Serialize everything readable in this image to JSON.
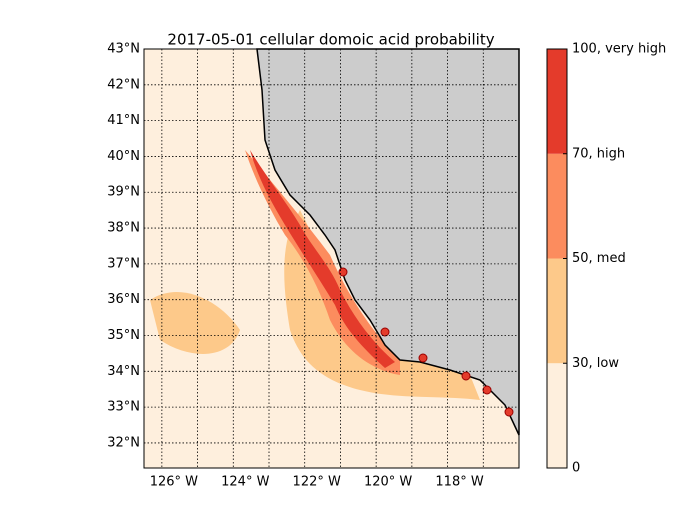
{
  "title": "2017-05-01 cellular domoic acid probability",
  "map": {
    "lat_range": [
      31.3,
      43
    ],
    "lon_range": [
      -126.5,
      -116
    ],
    "lat_ticks": [
      {
        "value": 32,
        "label": "32°N"
      },
      {
        "value": 33,
        "label": "33°N"
      },
      {
        "value": 34,
        "label": "34°N"
      },
      {
        "value": 35,
        "label": "35°N"
      },
      {
        "value": 36,
        "label": "36°N"
      },
      {
        "value": 37,
        "label": "37°N"
      },
      {
        "value": 38,
        "label": "38°N"
      },
      {
        "value": 39,
        "label": "39°N"
      },
      {
        "value": 40,
        "label": "40°N"
      },
      {
        "value": 41,
        "label": "41°N"
      },
      {
        "value": 42,
        "label": "42°N"
      },
      {
        "value": 43,
        "label": "43°N"
      }
    ],
    "lon_ticks": [
      {
        "value": -126,
        "label": "126° W"
      },
      {
        "value": -124,
        "label": "124° W"
      },
      {
        "value": -122,
        "label": "122° W"
      },
      {
        "value": -120,
        "label": "120° W"
      },
      {
        "value": -118,
        "label": "118° W"
      }
    ]
  },
  "colorbar": {
    "ticks": [
      {
        "value": 0,
        "label": "0"
      },
      {
        "value": 30,
        "label": "30, low"
      },
      {
        "value": 50,
        "label": "50, med"
      },
      {
        "value": 70,
        "label": "70, high"
      },
      {
        "value": 100,
        "label": "100, very high"
      }
    ],
    "colors": [
      "#feefdd",
      "#fdc98a",
      "#fc8c5e",
      "#e43b2b"
    ]
  }
}
